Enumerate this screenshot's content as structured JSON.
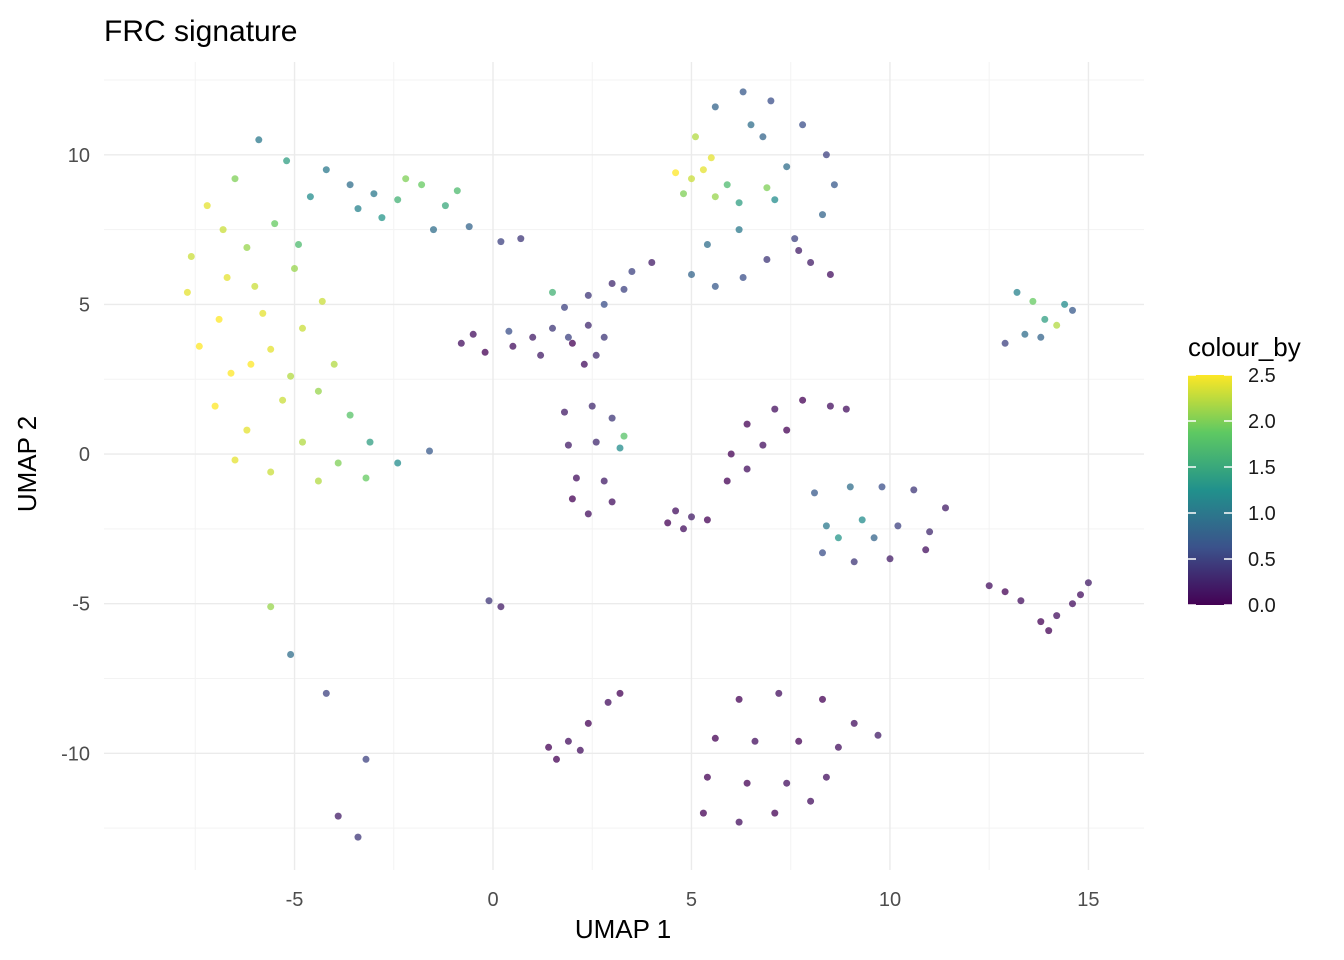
{
  "chart_data": {
    "type": "scatter",
    "title": "FRC signature",
    "xlabel": "UMAP 1",
    "ylabel": "UMAP 2",
    "xlim": [
      -9.8,
      16.4
    ],
    "ylim": [
      -13.9,
      13.1
    ],
    "xticks": [
      -5,
      0,
      5,
      10,
      15
    ],
    "yticks": [
      10,
      5,
      0,
      -5,
      -10
    ],
    "xtick_labels": [
      "-5",
      "0",
      "5",
      "10",
      "15"
    ],
    "ytick_labels": [
      "10",
      "5",
      "0",
      "-5",
      "-10"
    ],
    "grid": true,
    "color_scale": {
      "name": "viridis",
      "stops": [
        "#440154",
        "#3b528b",
        "#21918c",
        "#5ec962",
        "#fde725"
      ],
      "range": [
        0,
        2.5
      ]
    },
    "legend": {
      "title": "colour_by",
      "position": "right",
      "ticks": [
        2.5,
        2.0,
        1.5,
        1.0,
        0.5,
        0.0
      ],
      "tick_labels": [
        "2.5",
        "2.0",
        "1.5",
        "1.0",
        "0.5",
        "0.0"
      ]
    },
    "clusters": [
      {
        "id": "frc-crescent",
        "points": [
          [
            -5.9,
            10.5
          ],
          [
            -5.2,
            9.8
          ],
          [
            -6.5,
            9.2
          ],
          [
            -7.2,
            8.3
          ],
          [
            -6.8,
            7.5
          ],
          [
            -7.6,
            6.6
          ],
          [
            -6.2,
            6.9
          ],
          [
            -5.5,
            7.7
          ],
          [
            -4.6,
            8.6
          ],
          [
            -7.7,
            5.4
          ],
          [
            -6.9,
            4.5
          ],
          [
            -6.0,
            5.6
          ],
          [
            -5.0,
            6.2
          ],
          [
            -4.3,
            5.1
          ],
          [
            -7.4,
            3.6
          ],
          [
            -6.6,
            2.7
          ],
          [
            -5.6,
            3.5
          ],
          [
            -4.8,
            4.2
          ],
          [
            -4.0,
            3.0
          ],
          [
            -7.0,
            1.6
          ],
          [
            -6.2,
            0.8
          ],
          [
            -5.3,
            1.8
          ],
          [
            -4.4,
            2.1
          ],
          [
            -3.6,
            1.3
          ],
          [
            -6.5,
            -0.2
          ],
          [
            -5.6,
            -0.6
          ],
          [
            -4.8,
            0.4
          ],
          [
            -3.9,
            -0.3
          ],
          [
            -3.1,
            0.4
          ],
          [
            -4.4,
            -0.9
          ],
          [
            -3.2,
            -0.8
          ],
          [
            -2.4,
            -0.3
          ],
          [
            -1.6,
            0.1
          ],
          [
            -6.1,
            3.0
          ],
          [
            -5.1,
            2.6
          ],
          [
            -6.7,
            5.9
          ],
          [
            -4.9,
            7.0
          ],
          [
            -5.8,
            4.7
          ]
        ],
        "values": [
          1.0,
          1.4,
          2.0,
          2.4,
          2.3,
          2.3,
          2.1,
          1.9,
          1.2,
          2.4,
          2.5,
          2.3,
          2.1,
          2.3,
          2.5,
          2.5,
          2.4,
          2.3,
          2.2,
          2.5,
          2.4,
          2.3,
          2.1,
          1.8,
          2.4,
          2.3,
          2.2,
          2.0,
          1.4,
          2.2,
          1.9,
          1.2,
          0.7,
          2.5,
          2.2,
          2.4,
          1.7,
          2.4
        ]
      },
      {
        "id": "upper-arm",
        "points": [
          [
            -4.2,
            9.5
          ],
          [
            -3.6,
            9.0
          ],
          [
            -3.0,
            8.7
          ],
          [
            -2.4,
            8.5
          ],
          [
            -1.8,
            9.0
          ],
          [
            -1.2,
            8.3
          ],
          [
            -0.6,
            7.6
          ],
          [
            0.2,
            7.1
          ],
          [
            -2.8,
            7.9
          ],
          [
            -1.5,
            7.5
          ],
          [
            -3.4,
            8.2
          ],
          [
            -2.2,
            9.2
          ],
          [
            -0.9,
            8.8
          ],
          [
            0.7,
            7.2
          ]
        ],
        "values": [
          1.0,
          0.9,
          1.0,
          1.6,
          1.9,
          1.5,
          0.8,
          0.5,
          1.3,
          0.9,
          1.1,
          2.0,
          1.7,
          0.4
        ]
      },
      {
        "id": "blob-left",
        "points": [
          [
            -0.8,
            3.7
          ],
          [
            -0.2,
            3.4
          ],
          [
            0.5,
            3.6
          ],
          [
            1.2,
            3.3
          ],
          [
            2.0,
            3.7
          ],
          [
            2.6,
            3.3
          ],
          [
            1.5,
            4.2
          ],
          [
            0.4,
            4.1
          ],
          [
            2.4,
            4.3
          ],
          [
            -0.5,
            4.0
          ],
          [
            1.0,
            3.9
          ],
          [
            1.9,
            3.9
          ],
          [
            2.8,
            3.9
          ],
          [
            2.3,
            3.0
          ]
        ],
        "values": [
          0.1,
          0.0,
          0.1,
          0.2,
          0.0,
          0.3,
          0.4,
          0.6,
          0.3,
          0.1,
          0.2,
          0.5,
          0.4,
          0.1
        ]
      },
      {
        "id": "thin-streak",
        "points": [
          [
            1.8,
            4.9
          ],
          [
            2.4,
            5.3
          ],
          [
            3.0,
            5.7
          ],
          [
            3.5,
            6.1
          ],
          [
            4.0,
            6.4
          ],
          [
            1.5,
            5.4
          ],
          [
            2.8,
            5.0
          ],
          [
            3.3,
            5.5
          ]
        ],
        "values": [
          0.5,
          0.4,
          0.3,
          0.5,
          0.2,
          1.6,
          0.6,
          0.5
        ]
      },
      {
        "id": "arc-right",
        "points": [
          [
            5.6,
            11.6
          ],
          [
            6.3,
            12.1
          ],
          [
            7.0,
            11.8
          ],
          [
            7.8,
            11.0
          ],
          [
            8.4,
            10.0
          ],
          [
            8.6,
            9.0
          ],
          [
            8.3,
            8.0
          ],
          [
            7.6,
            7.2
          ],
          [
            6.9,
            6.5
          ],
          [
            6.3,
            5.9
          ],
          [
            5.6,
            5.6
          ],
          [
            5.0,
            6.0
          ],
          [
            5.4,
            7.0
          ],
          [
            6.2,
            7.5
          ],
          [
            7.1,
            8.5
          ],
          [
            7.4,
            9.6
          ],
          [
            6.8,
            10.6
          ],
          [
            8.0,
            6.4
          ],
          [
            8.5,
            6.0
          ],
          [
            7.7,
            6.8
          ],
          [
            6.5,
            11.0
          ]
        ],
        "values": [
          0.8,
          0.7,
          0.6,
          0.6,
          0.5,
          0.7,
          0.8,
          0.5,
          0.4,
          0.6,
          0.7,
          0.8,
          0.9,
          1.0,
          1.2,
          0.9,
          0.8,
          0.2,
          0.1,
          0.2,
          0.9
        ]
      },
      {
        "id": "arc-yellow-patch",
        "points": [
          [
            5.1,
            10.6
          ],
          [
            5.5,
            9.9
          ],
          [
            5.0,
            9.2
          ],
          [
            4.8,
            8.7
          ],
          [
            5.6,
            8.6
          ],
          [
            5.3,
            9.5
          ],
          [
            4.6,
            9.4
          ],
          [
            5.9,
            9.0
          ],
          [
            6.2,
            8.4
          ],
          [
            6.9,
            8.9
          ]
        ],
        "values": [
          2.2,
          2.4,
          2.3,
          2.0,
          2.1,
          2.4,
          2.5,
          1.7,
          1.4,
          2.0
        ]
      },
      {
        "id": "blob-mid",
        "points": [
          [
            1.8,
            1.4
          ],
          [
            2.5,
            1.6
          ],
          [
            3.0,
            1.2
          ],
          [
            1.9,
            0.3
          ],
          [
            2.6,
            0.4
          ],
          [
            3.2,
            0.2
          ],
          [
            2.1,
            -0.8
          ],
          [
            2.8,
            -0.9
          ],
          [
            3.0,
            -1.6
          ],
          [
            2.4,
            -2.0
          ],
          [
            3.3,
            0.6
          ],
          [
            2.0,
            -1.5
          ]
        ],
        "values": [
          0.2,
          0.3,
          0.4,
          0.2,
          0.3,
          1.2,
          0.1,
          0.2,
          0.1,
          0.1,
          1.8,
          0.0
        ]
      },
      {
        "id": "spur",
        "points": [
          [
            4.6,
            -1.9
          ],
          [
            5.0,
            -2.1
          ],
          [
            5.4,
            -2.2
          ],
          [
            4.8,
            -2.5
          ],
          [
            4.4,
            -2.3
          ]
        ],
        "values": [
          0.1,
          0.2,
          0.0,
          0.1,
          0.0
        ]
      },
      {
        "id": "diagonal-mid",
        "points": [
          [
            6.4,
            1.0
          ],
          [
            7.1,
            1.5
          ],
          [
            7.8,
            1.8
          ],
          [
            8.5,
            1.6
          ],
          [
            6.0,
            0.0
          ],
          [
            6.8,
            0.3
          ],
          [
            7.4,
            0.8
          ],
          [
            5.9,
            -0.9
          ],
          [
            6.4,
            -0.5
          ],
          [
            8.9,
            1.5
          ]
        ],
        "values": [
          0.0,
          0.1,
          0.0,
          0.1,
          0.0,
          0.1,
          0.0,
          0.0,
          0.1,
          0.1
        ]
      },
      {
        "id": "blob-right-mid",
        "points": [
          [
            8.1,
            -1.3
          ],
          [
            9.0,
            -1.1
          ],
          [
            9.8,
            -1.1
          ],
          [
            10.6,
            -1.2
          ],
          [
            11.4,
            -1.8
          ],
          [
            8.4,
            -2.4
          ],
          [
            9.3,
            -2.2
          ],
          [
            10.2,
            -2.4
          ],
          [
            11.0,
            -2.6
          ],
          [
            8.3,
            -3.3
          ],
          [
            9.1,
            -3.6
          ],
          [
            10.0,
            -3.5
          ],
          [
            10.9,
            -3.2
          ],
          [
            8.7,
            -2.8
          ],
          [
            9.6,
            -2.8
          ]
        ],
        "values": [
          0.7,
          0.9,
          0.6,
          0.4,
          0.2,
          1.0,
          1.2,
          0.5,
          0.3,
          0.6,
          0.4,
          0.2,
          0.1,
          1.3,
          0.8
        ]
      },
      {
        "id": "right-tri",
        "points": [
          [
            12.9,
            3.7
          ],
          [
            13.4,
            4.0
          ],
          [
            13.9,
            4.5
          ],
          [
            14.4,
            5.0
          ],
          [
            13.2,
            5.4
          ],
          [
            13.8,
            3.9
          ],
          [
            14.2,
            4.3
          ],
          [
            13.6,
            5.1
          ],
          [
            14.6,
            4.8
          ]
        ],
        "values": [
          0.5,
          0.9,
          1.4,
          1.2,
          1.1,
          0.8,
          2.2,
          1.9,
          0.7
        ]
      },
      {
        "id": "far-right",
        "points": [
          [
            12.5,
            -4.4
          ],
          [
            12.9,
            -4.6
          ],
          [
            13.3,
            -4.9
          ],
          [
            13.8,
            -5.6
          ],
          [
            14.2,
            -5.4
          ],
          [
            14.6,
            -5.0
          ],
          [
            15.0,
            -4.3
          ],
          [
            14.0,
            -5.9
          ],
          [
            14.8,
            -4.7
          ]
        ],
        "values": [
          0.1,
          0.0,
          0.1,
          0.0,
          0.1,
          0.1,
          0.2,
          0.0,
          0.1
        ]
      },
      {
        "id": "lower-left",
        "points": [
          [
            1.4,
            -9.8
          ],
          [
            1.9,
            -9.6
          ],
          [
            2.4,
            -9.0
          ],
          [
            2.9,
            -8.3
          ],
          [
            3.2,
            -8.0
          ],
          [
            1.6,
            -10.2
          ],
          [
            2.2,
            -9.9
          ]
        ],
        "values": [
          0.0,
          0.1,
          0.0,
          0.1,
          0.0,
          0.0,
          0.1
        ]
      },
      {
        "id": "lower-big",
        "points": [
          [
            6.2,
            -8.2
          ],
          [
            7.2,
            -8.0
          ],
          [
            8.3,
            -8.2
          ],
          [
            9.1,
            -9.0
          ],
          [
            9.7,
            -9.4
          ],
          [
            5.6,
            -9.5
          ],
          [
            6.6,
            -9.6
          ],
          [
            7.7,
            -9.6
          ],
          [
            8.7,
            -9.8
          ],
          [
            5.4,
            -10.8
          ],
          [
            6.4,
            -11.0
          ],
          [
            7.4,
            -11.0
          ],
          [
            8.4,
            -10.8
          ],
          [
            5.3,
            -12.0
          ],
          [
            6.2,
            -12.3
          ],
          [
            7.1,
            -12.0
          ],
          [
            8.0,
            -11.6
          ]
        ],
        "values": [
          0.0,
          0.1,
          0.0,
          0.1,
          0.2,
          0.0,
          0.1,
          0.0,
          0.1,
          0.0,
          0.0,
          0.1,
          0.1,
          0.0,
          0.1,
          0.0,
          0.1
        ]
      },
      {
        "id": "outliers",
        "points": [
          [
            -5.6,
            -5.1
          ],
          [
            -5.1,
            -6.7
          ],
          [
            -4.2,
            -8.0
          ],
          [
            -3.2,
            -10.2
          ],
          [
            -3.9,
            -12.1
          ],
          [
            -3.4,
            -12.8
          ],
          [
            -0.1,
            -4.9
          ],
          [
            0.2,
            -5.1
          ]
        ],
        "values": [
          2.1,
          0.9,
          0.5,
          0.5,
          0.2,
          0.4,
          0.4,
          0.2
        ]
      }
    ]
  }
}
